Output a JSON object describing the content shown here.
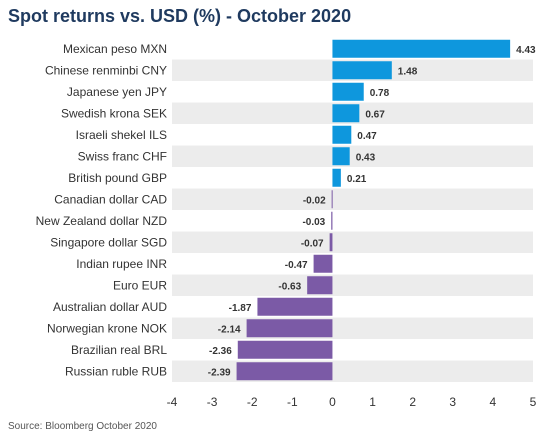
{
  "chart_data": {
    "type": "bar",
    "orientation": "horizontal",
    "title": "Spot returns vs. USD (%) - October 2020",
    "source": "Source: Bloomberg October 2020",
    "categories": [
      "Mexican peso MXN",
      "Chinese renminbi CNY",
      "Japanese yen JPY",
      "Swedish krona SEK",
      "Israeli shekel ILS",
      "Swiss franc CHF",
      "British pound GBP",
      "Canadian dollar CAD",
      "New Zealand dollar NZD",
      "Singapore dollar SGD",
      "Indian rupee INR",
      "Euro EUR",
      "Australian dollar AUD",
      "Norwegian krone NOK",
      "Brazilian real BRL",
      "Russian ruble RUB"
    ],
    "values": [
      4.43,
      1.48,
      0.78,
      0.67,
      0.47,
      0.43,
      0.21,
      -0.02,
      -0.03,
      -0.07,
      -0.47,
      -0.63,
      -1.87,
      -2.14,
      -2.36,
      -2.39
    ],
    "value_labels": [
      "4.43",
      "1.48",
      "0.78",
      "0.67",
      "0.47",
      "0.43",
      "0.21",
      "-0.02",
      "-0.03",
      "-0.07",
      "-0.47",
      "-0.63",
      "-1.87",
      "-2.14",
      "-2.36",
      "-2.39"
    ],
    "xlim": [
      -4,
      5
    ],
    "xticks": [
      -4,
      -3,
      -2,
      -1,
      0,
      1,
      2,
      3,
      4,
      5
    ],
    "colors": {
      "positive": "#0e97dd",
      "negative": "#7b5aa6",
      "band": "#ececec"
    }
  }
}
